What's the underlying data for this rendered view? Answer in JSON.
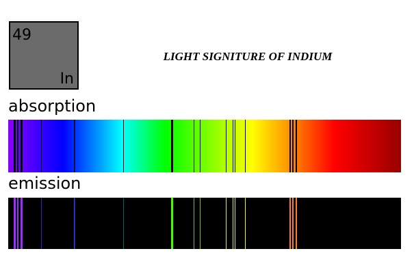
{
  "element": {
    "number": "49",
    "symbol": "In"
  },
  "title": "LIGHT SIGNITURE OF INDIUM",
  "absorption_label": "absorption",
  "emission_label": "emission"
}
